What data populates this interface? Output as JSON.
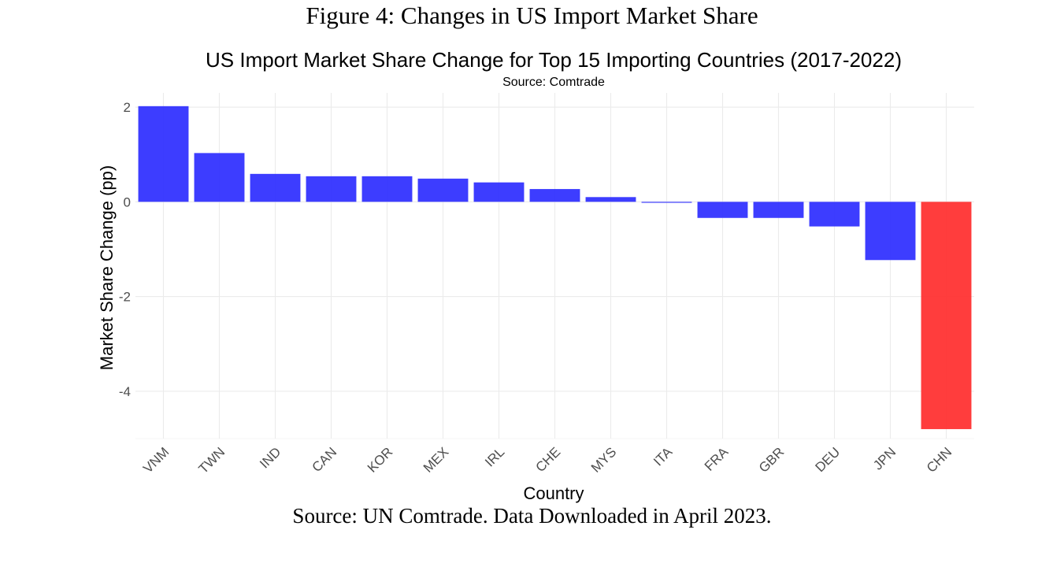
{
  "figure": {
    "title": "Figure 4: Changes in US Import Market Share",
    "caption": "Source: UN Comtrade. Data Downloaded in April 2023."
  },
  "chart_data": {
    "type": "bar",
    "title": "US Import Market Share Change for Top 15 Importing Countries (2017-2022)",
    "subtitle": "Source: Comtrade",
    "xlabel": "Country",
    "ylabel": "Market Share Change (pp)",
    "categories": [
      "VNM",
      "TWN",
      "IND",
      "CAN",
      "KOR",
      "MEX",
      "IRL",
      "CHE",
      "MYS",
      "ITA",
      "FRA",
      "GBR",
      "DEU",
      "JPN",
      "CHN"
    ],
    "values": [
      2.02,
      1.03,
      0.59,
      0.54,
      0.54,
      0.49,
      0.41,
      0.27,
      0.1,
      -0.02,
      -0.34,
      -0.34,
      -0.52,
      -1.23,
      -4.8
    ],
    "highlight": [
      "CHN"
    ],
    "ylim": [
      -5,
      2.3
    ],
    "yticks": [
      2,
      0,
      -2,
      -4
    ],
    "grid": true,
    "legend": "none",
    "colors": {
      "default": "#3333ff",
      "highlight": "#ff3333"
    }
  }
}
